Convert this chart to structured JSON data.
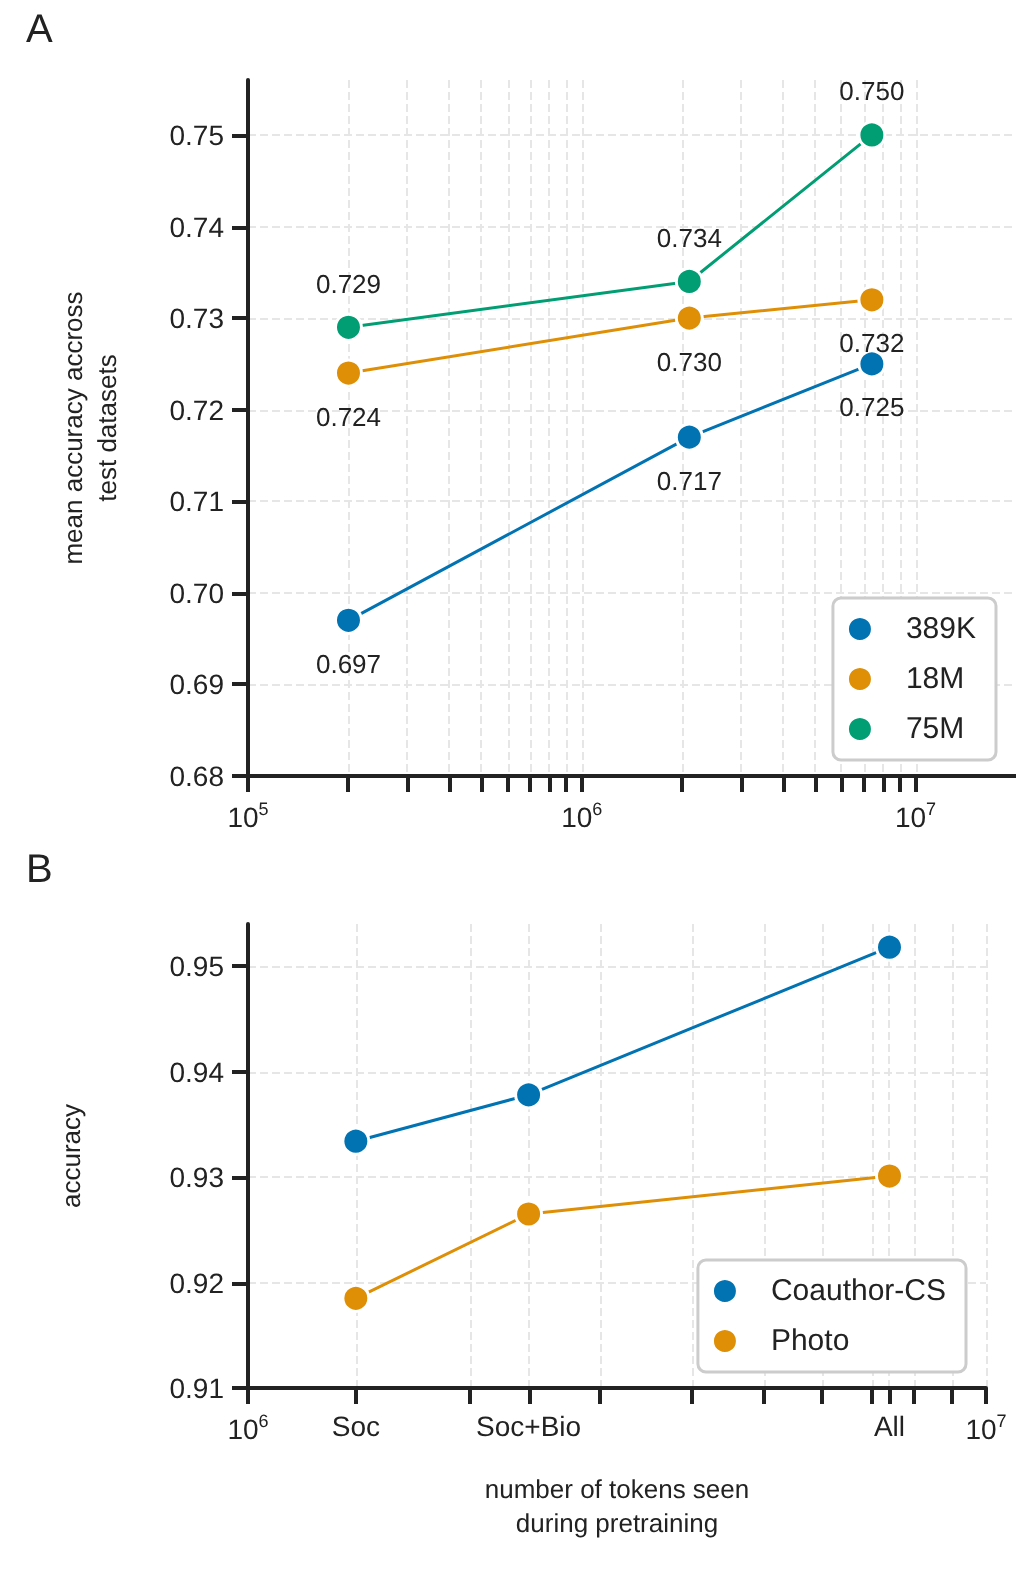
{
  "chart_data": [
    {
      "type": "line",
      "title": "A",
      "ylabel": "mean accuracy accross\ntest datasets",
      "x": [
        200000,
        2100000,
        7400000
      ],
      "log": "x",
      "xlim": [
        100000,
        20000000
      ],
      "xticks": [
        {
          "value": 100000,
          "label": "10$^{5}$"
        },
        {
          "value": 200000,
          "label": null
        },
        {
          "value": 300000,
          "label": null
        },
        {
          "value": 400000,
          "label": null
        },
        {
          "value": 500000,
          "label": null
        },
        {
          "value": 600000,
          "label": null
        },
        {
          "value": 700000,
          "label": null
        },
        {
          "value": 800000,
          "label": null
        },
        {
          "value": 900000,
          "label": null
        },
        {
          "value": 1000000,
          "label": "10$^{6}$"
        },
        {
          "value": 2000000,
          "label": null
        },
        {
          "value": 3000000,
          "label": null
        },
        {
          "value": 4000000,
          "label": null
        },
        {
          "value": 5000000,
          "label": null
        },
        {
          "value": 6000000,
          "label": null
        },
        {
          "value": 7000000,
          "label": null
        },
        {
          "value": 8000000,
          "label": null
        },
        {
          "value": 9000000,
          "label": null
        },
        {
          "value": 10000000,
          "label": "10$^{7}$"
        }
      ],
      "ylim": [
        0.68,
        0.756
      ],
      "yticks": [
        0.68,
        0.69,
        {
          "value": 0.7,
          "label": "0.70"
        },
        0.71,
        0.72,
        0.73,
        0.74,
        0.75
      ],
      "grid": true,
      "legend": "bottom right",
      "marker": "circle",
      "series": [
        {
          "name": "389K",
          "color": "#0173b2",
          "values": [
            0.697,
            0.717,
            0.725
          ],
          "value_labels": [
            "0.697",
            "0.717",
            "0.725"
          ]
        },
        {
          "name": "18M",
          "color": "#de8f05",
          "values": [
            0.724,
            0.73,
            0.732
          ],
          "value_labels": [
            "0.724",
            "0.730",
            "0.732"
          ]
        },
        {
          "name": "75M",
          "color": "#029e73",
          "values": [
            0.729,
            0.734,
            0.75
          ],
          "value_labels": [
            "0.729",
            "0.734",
            "0.750"
          ]
        }
      ]
    },
    {
      "type": "line",
      "title": "B",
      "xlabel": "number of tokens seen\nduring pretraining",
      "ylabel": "accuracy",
      "x": [
        1400000,
        2400000,
        7400000
      ],
      "log": "x",
      "xlim": [
        1000000,
        10000000
      ],
      "xticks": [
        {
          "value": 1000000,
          "label": "10$^{6}$"
        },
        {
          "value": 1400000,
          "label": "Soc"
        },
        {
          "value": 2000000,
          "label": null
        },
        {
          "value": 2400000,
          "label": "Soc+Bio"
        },
        {
          "value": 3000000,
          "label": null
        },
        {
          "value": 4000000,
          "label": null
        },
        {
          "value": 5000000,
          "label": null
        },
        {
          "value": 6000000,
          "label": null
        },
        {
          "value": 7000000,
          "label": null
        },
        {
          "value": 7400000,
          "label": "All"
        },
        {
          "value": 8000000,
          "label": null
        },
        {
          "value": 9000000,
          "label": null
        },
        {
          "value": 10000000,
          "label": "10$^{7}$"
        }
      ],
      "ylim": [
        0.91,
        0.954
      ],
      "yticks": [
        0.91,
        0.92,
        0.93,
        0.94,
        0.95
      ],
      "grid": true,
      "legend": "bottom right",
      "marker": "circle",
      "series": [
        {
          "name": "Coauthor-CS",
          "color": "#0173b2",
          "values": [
            0.9334,
            0.9378,
            0.9518
          ]
        },
        {
          "name": "Photo",
          "color": "#de8f05",
          "values": [
            0.9185,
            0.9265,
            0.9301
          ]
        }
      ]
    }
  ]
}
